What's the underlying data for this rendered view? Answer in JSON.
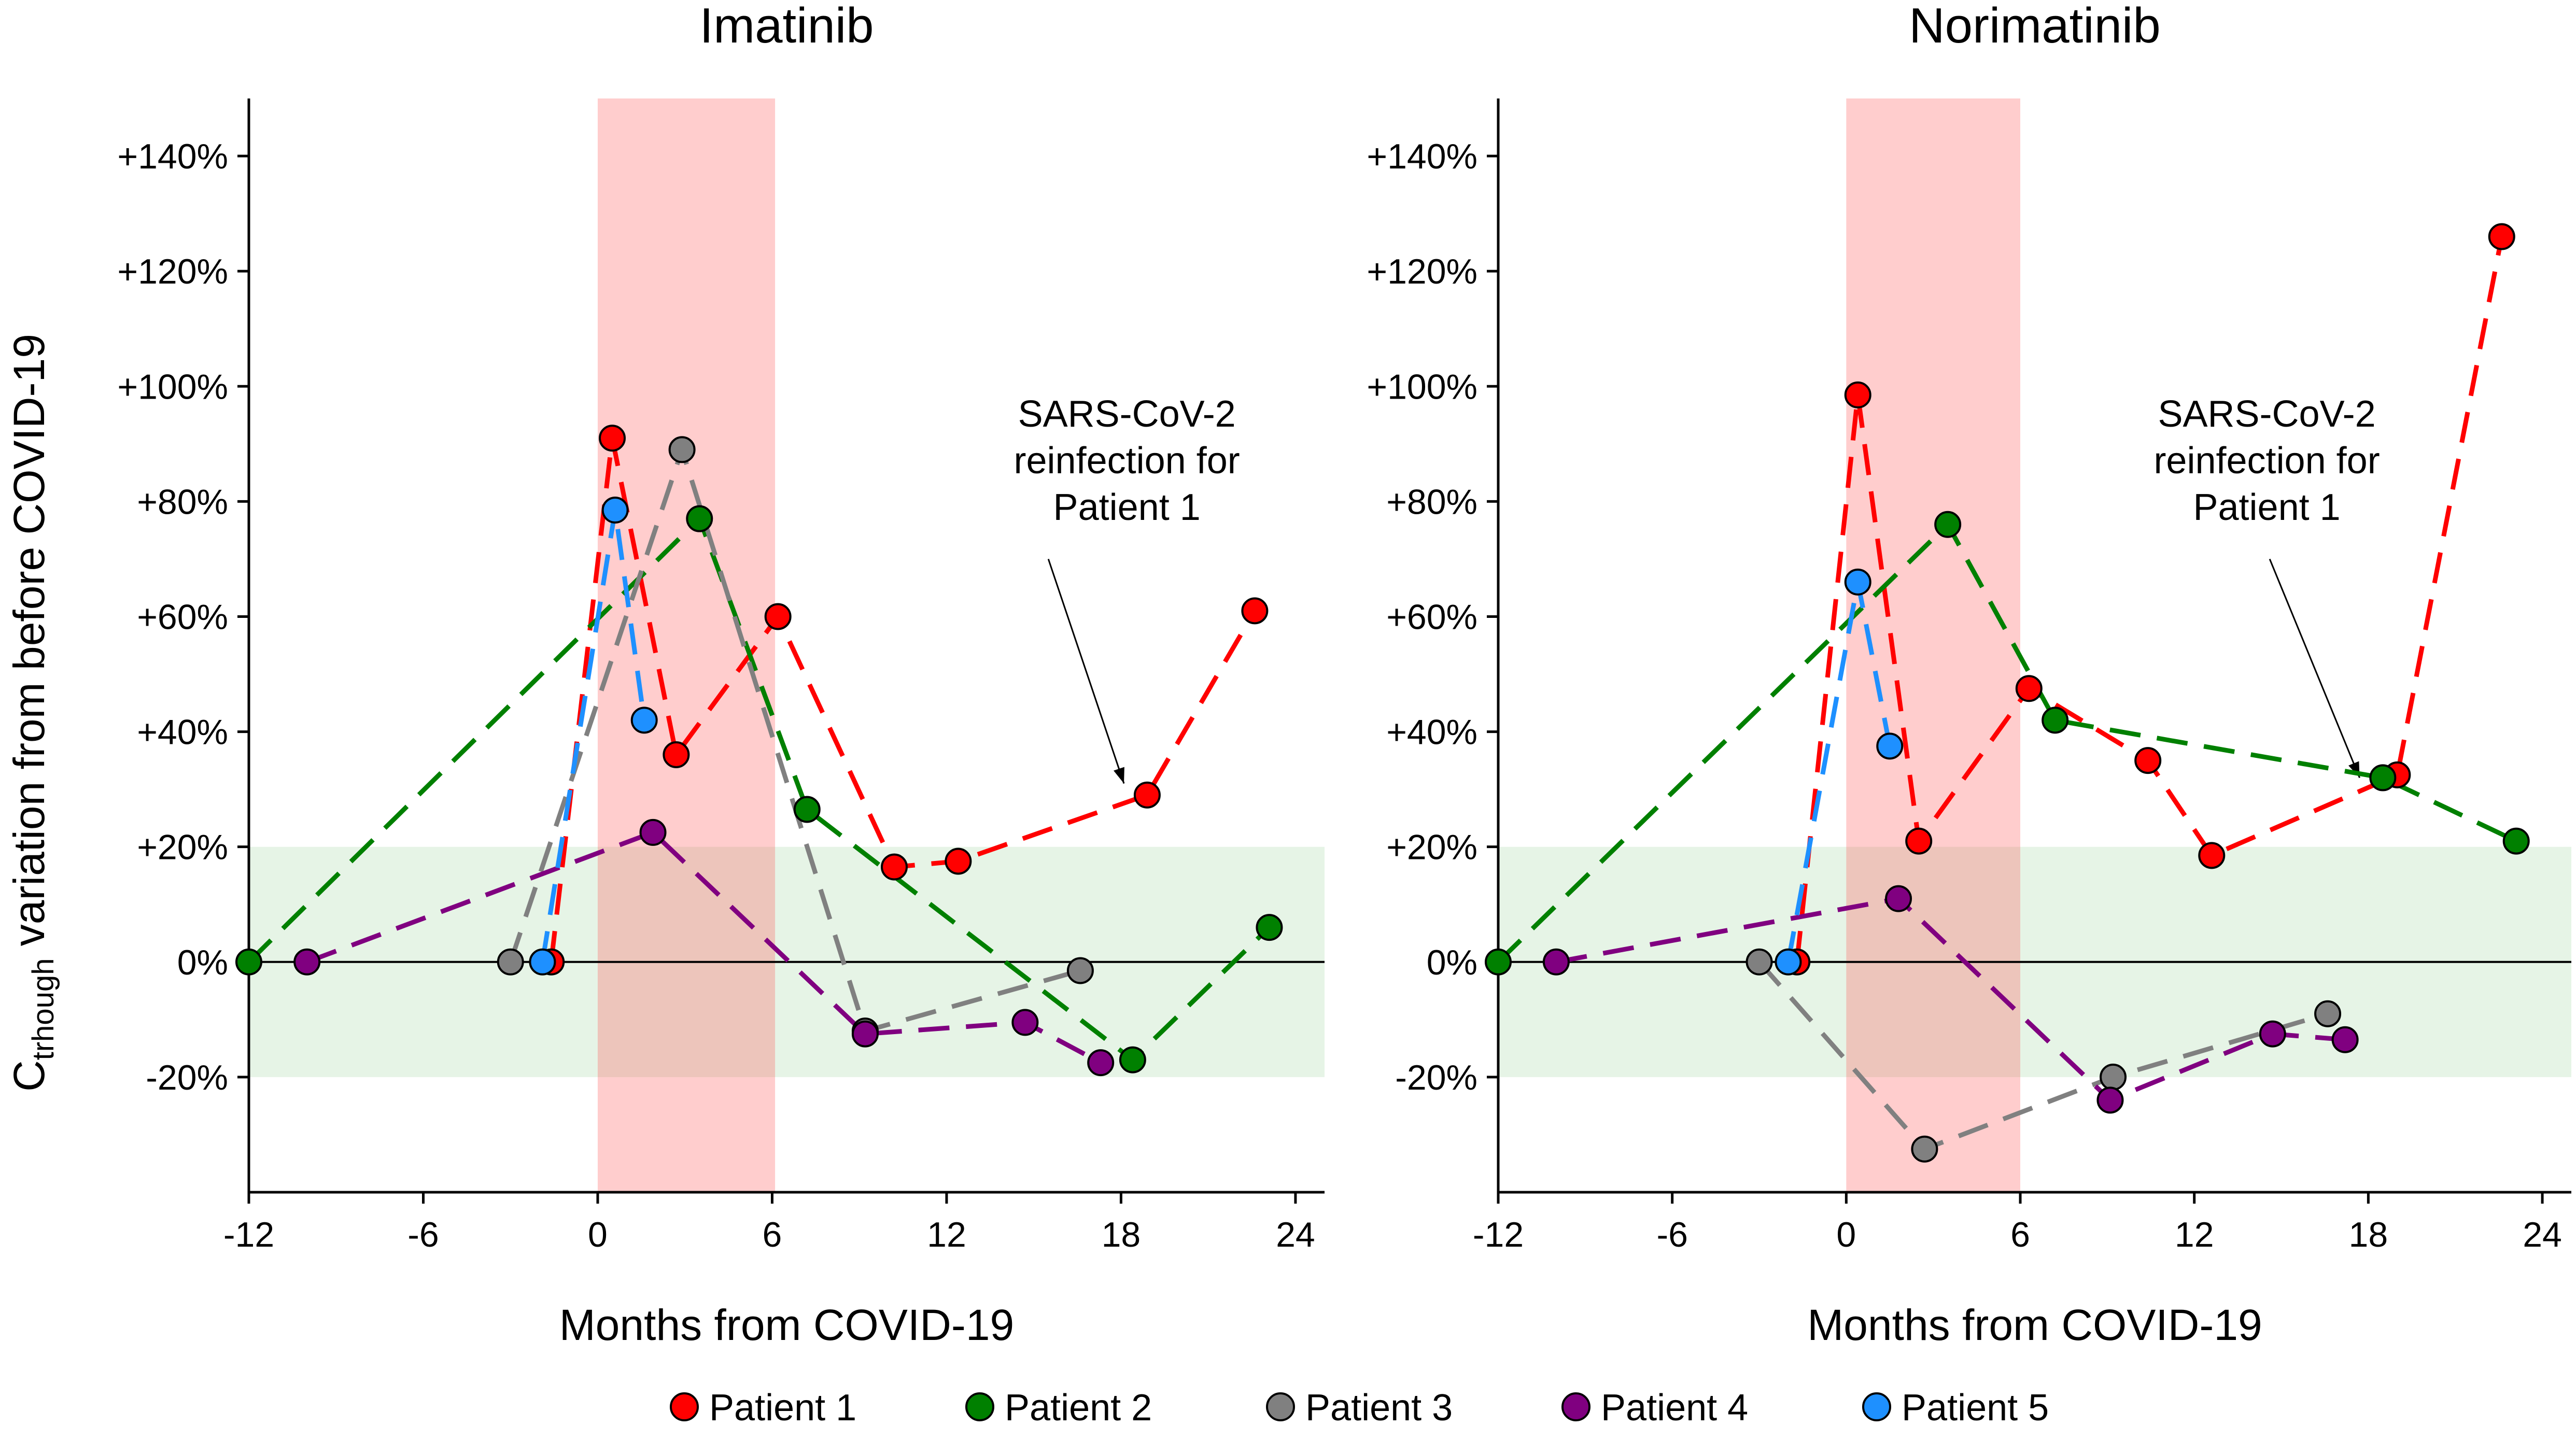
{
  "chart_data": [
    {
      "type": "line",
      "title": "Imatinib",
      "xlabel": "Months from COVID-19",
      "ylabel_main": "C",
      "ylabel_sub": "trhough",
      "ylabel_rest": " variation from before COVID-19",
      "xlim": [
        -12,
        25
      ],
      "ylim": [
        -40,
        150
      ],
      "xticks": [
        -12,
        -6,
        0,
        6,
        12,
        18,
        24
      ],
      "xtick_labels": [
        "-12",
        "-6",
        "0",
        "6",
        "12",
        "18",
        "24"
      ],
      "yticks": [
        -20,
        0,
        20,
        40,
        60,
        80,
        100,
        120,
        140
      ],
      "ytick_labels": [
        "-20%",
        "0%",
        "+20%",
        "+40%",
        "+60%",
        "+80%",
        "+100%",
        "+120%",
        "+140%"
      ],
      "shaded_x": [
        0,
        6.1
      ],
      "shaded_y": [
        -20,
        20
      ],
      "reference_line_y": 0,
      "annotation": {
        "lines": [
          "SARS-CoV-2",
          "reinfection for",
          "Patient 1"
        ],
        "text_x": 18.2,
        "text_y": 93,
        "arrow_from": [
          15.5,
          70
        ],
        "arrow_to": [
          18.1,
          31
        ]
      },
      "series": [
        {
          "name": "Patient 1",
          "color": "#ff0000",
          "x": [
            -1.6,
            0.5,
            2.7,
            6.2,
            10.2,
            12.4,
            18.9,
            22.6
          ],
          "y": [
            0,
            91,
            36,
            60,
            16.5,
            17.5,
            29,
            61
          ]
        },
        {
          "name": "Patient 2",
          "color": "#008000",
          "x": [
            -12,
            3.5,
            7.2,
            18.4,
            23.1
          ],
          "y": [
            0,
            77,
            26.5,
            -17,
            6
          ]
        },
        {
          "name": "Patient 3",
          "color": "#808080",
          "x": [
            -3,
            2.9,
            9.2,
            16.6
          ],
          "y": [
            0,
            89,
            -12,
            -1.5
          ]
        },
        {
          "name": "Patient 4",
          "color": "#800080",
          "x": [
            -10,
            1.9,
            9.2,
            14.7,
            17.3
          ],
          "y": [
            0,
            22.5,
            -12.5,
            -10.5,
            -17.5
          ]
        },
        {
          "name": "Patient 5",
          "color": "#1e90ff",
          "x": [
            -1.9,
            0.6,
            1.6
          ],
          "y": [
            0,
            78.5,
            42
          ]
        }
      ]
    },
    {
      "type": "line",
      "title": "Norimatinib",
      "xlabel": "Months from COVID-19",
      "xlim": [
        -12,
        25
      ],
      "ylim": [
        -40,
        150
      ],
      "xticks": [
        -12,
        -6,
        0,
        6,
        12,
        18,
        24
      ],
      "xtick_labels": [
        "-12",
        "-6",
        "0",
        "6",
        "12",
        "18",
        "24"
      ],
      "yticks": [
        -20,
        0,
        20,
        40,
        60,
        80,
        100,
        120,
        140
      ],
      "ytick_labels": [
        "-20%",
        "0%",
        "+20%",
        "+40%",
        "+60%",
        "+80%",
        "+100%",
        "+120%",
        "+140%"
      ],
      "shaded_x": [
        0,
        6
      ],
      "shaded_y": [
        -20,
        20
      ],
      "reference_line_y": 0,
      "annotation": {
        "lines": [
          "SARS-CoV-2",
          "reinfection for",
          "Patient 1"
        ],
        "text_x": 14.5,
        "text_y": 93,
        "arrow_from": [
          14.6,
          70
        ],
        "arrow_to": [
          17.7,
          32
        ]
      },
      "series": [
        {
          "name": "Patient 1",
          "color": "#ff0000",
          "x": [
            -1.7,
            0.4,
            2.5,
            6.3,
            10.4,
            12.6,
            19,
            22.6
          ],
          "y": [
            0,
            98.5,
            21,
            47.5,
            35,
            18.5,
            32.5,
            126
          ]
        },
        {
          "name": "Patient 2",
          "color": "#008000",
          "x": [
            -12,
            3.5,
            7.2,
            18.5,
            23.1
          ],
          "y": [
            0,
            76,
            42,
            32,
            21
          ]
        },
        {
          "name": "Patient 3",
          "color": "#808080",
          "x": [
            -3,
            2.7,
            9.2,
            16.6
          ],
          "y": [
            0,
            -32.5,
            -20,
            -9
          ]
        },
        {
          "name": "Patient 4",
          "color": "#800080",
          "x": [
            -10,
            1.8,
            9.1,
            14.7,
            17.2
          ],
          "y": [
            0,
            11,
            -24,
            -12.5,
            -13.5
          ]
        },
        {
          "name": "Patient 5",
          "color": "#1e90ff",
          "x": [
            -2,
            0.4,
            1.5
          ],
          "y": [
            0,
            66,
            37.5
          ]
        }
      ]
    }
  ],
  "legend": [
    {
      "name": "Patient 1",
      "color": "#ff0000"
    },
    {
      "name": "Patient 2",
      "color": "#008000"
    },
    {
      "name": "Patient 3",
      "color": "#808080"
    },
    {
      "name": "Patient 4",
      "color": "#800080"
    },
    {
      "name": "Patient 5",
      "color": "#1e90ff"
    }
  ]
}
